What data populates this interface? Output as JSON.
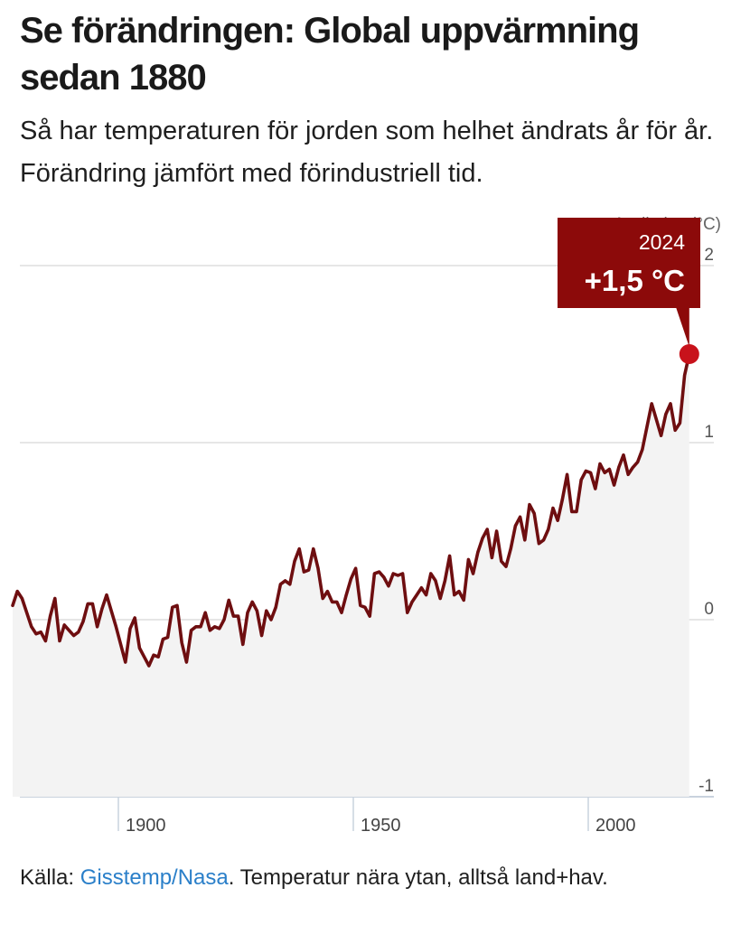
{
  "header": {
    "title": "Se förändringen: Global uppvärmning sedan 1880",
    "subtitle": "Så har temperaturen för jorden som helhet ändrats år för år. Förändring jämfört med förindustriell tid."
  },
  "footer": {
    "prefix": "Källa: ",
    "link_text": "Gisstemp/Nasa",
    "suffix": ". Temperatur nära ytan, alltså land+hav."
  },
  "colors": {
    "line": "#6e0e10",
    "badge": "#8c0a0a",
    "endpoint": "#c8121b",
    "area": "#f3f3f3",
    "grid": "#d6d6d6",
    "link": "#2a7fc9"
  },
  "chart_data": {
    "type": "line",
    "title": "Se förändringen: Global uppvärmning sedan 1880",
    "ylabel": "Avvikelse (°C)",
    "xlabel": "",
    "xlim": [
      1880,
      2024
    ],
    "ylim": [
      -1,
      2
    ],
    "y_ticks": [
      "2",
      "1",
      "0",
      "-1"
    ],
    "x_ticks": [
      "1900",
      "1950",
      "2000"
    ],
    "x_tick_values": [
      1900,
      1950,
      2000
    ],
    "y_tick_values": [
      2,
      1,
      0,
      -1
    ],
    "grid": true,
    "highlight": {
      "year": "2024",
      "label": "+1,5 °C",
      "value": 1.5
    },
    "series": [
      {
        "x": [
          1880,
          1881,
          1882,
          1883,
          1884,
          1885,
          1886,
          1887,
          1888,
          1889,
          1890,
          1891,
          1892,
          1893,
          1894,
          1895,
          1896,
          1897,
          1898,
          1899,
          1900,
          1901,
          1902,
          1903,
          1904,
          1905,
          1906,
          1907,
          1908,
          1909,
          1910,
          1911,
          1912,
          1913,
          1914,
          1915,
          1916,
          1917,
          1918,
          1919,
          1920,
          1921,
          1922,
          1923,
          1924,
          1925,
          1926,
          1927,
          1928,
          1929,
          1930,
          1931,
          1932,
          1933,
          1934,
          1935,
          1936,
          1937,
          1938,
          1939,
          1940,
          1941,
          1942,
          1943,
          1944,
          1945,
          1946,
          1947,
          1948,
          1949,
          1950,
          1951,
          1952,
          1953,
          1954,
          1955,
          1956,
          1957,
          1958,
          1959,
          1960,
          1961,
          1962,
          1963,
          1964,
          1965,
          1966,
          1967,
          1968,
          1969,
          1970,
          1971,
          1972,
          1973,
          1974,
          1975,
          1976,
          1977,
          1978,
          1979,
          1980,
          1981,
          1982,
          1983,
          1984,
          1985,
          1986,
          1987,
          1988,
          1989,
          1990,
          1991,
          1992,
          1993,
          1994,
          1995,
          1996,
          1997,
          1998,
          1999,
          2000,
          2001,
          2002,
          2003,
          2004,
          2005,
          2006,
          2007,
          2008,
          2009,
          2010,
          2011,
          2012,
          2013,
          2014,
          2015,
          2016,
          2017,
          2018,
          2019,
          2020,
          2021,
          2022,
          2023,
          2024
        ],
        "values": [
          0.08,
          0.16,
          0.12,
          0.04,
          -0.04,
          -0.08,
          -0.07,
          -0.12,
          0.02,
          0.12,
          -0.12,
          -0.03,
          -0.06,
          -0.09,
          -0.07,
          -0.01,
          0.09,
          0.09,
          -0.04,
          0.06,
          0.14,
          0.05,
          -0.04,
          -0.14,
          -0.24,
          -0.05,
          0.01,
          -0.16,
          -0.21,
          -0.26,
          -0.2,
          -0.21,
          -0.11,
          -0.1,
          0.07,
          0.08,
          -0.13,
          -0.24,
          -0.06,
          -0.04,
          -0.04,
          0.04,
          -0.06,
          -0.04,
          -0.05,
          0.0,
          0.11,
          0.02,
          0.02,
          -0.14,
          0.04,
          0.1,
          0.05,
          -0.09,
          0.05,
          0.0,
          0.07,
          0.2,
          0.22,
          0.2,
          0.33,
          0.4,
          0.27,
          0.28,
          0.4,
          0.29,
          0.12,
          0.16,
          0.1,
          0.1,
          0.04,
          0.14,
          0.23,
          0.29,
          0.08,
          0.07,
          0.02,
          0.26,
          0.27,
          0.24,
          0.19,
          0.26,
          0.25,
          0.26,
          0.04,
          0.1,
          0.14,
          0.18,
          0.14,
          0.26,
          0.22,
          0.12,
          0.22,
          0.36,
          0.14,
          0.16,
          0.11,
          0.34,
          0.26,
          0.38,
          0.46,
          0.51,
          0.35,
          0.5,
          0.33,
          0.3,
          0.4,
          0.53,
          0.58,
          0.45,
          0.65,
          0.6,
          0.43,
          0.45,
          0.51,
          0.63,
          0.56,
          0.68,
          0.82,
          0.61,
          0.61,
          0.79,
          0.84,
          0.83,
          0.74,
          0.88,
          0.83,
          0.85,
          0.76,
          0.86,
          0.93,
          0.82,
          0.86,
          0.89,
          0.96,
          1.09,
          1.22,
          1.13,
          1.04,
          1.16,
          1.22,
          1.07,
          1.11,
          1.38,
          1.5
        ]
      }
    ]
  }
}
